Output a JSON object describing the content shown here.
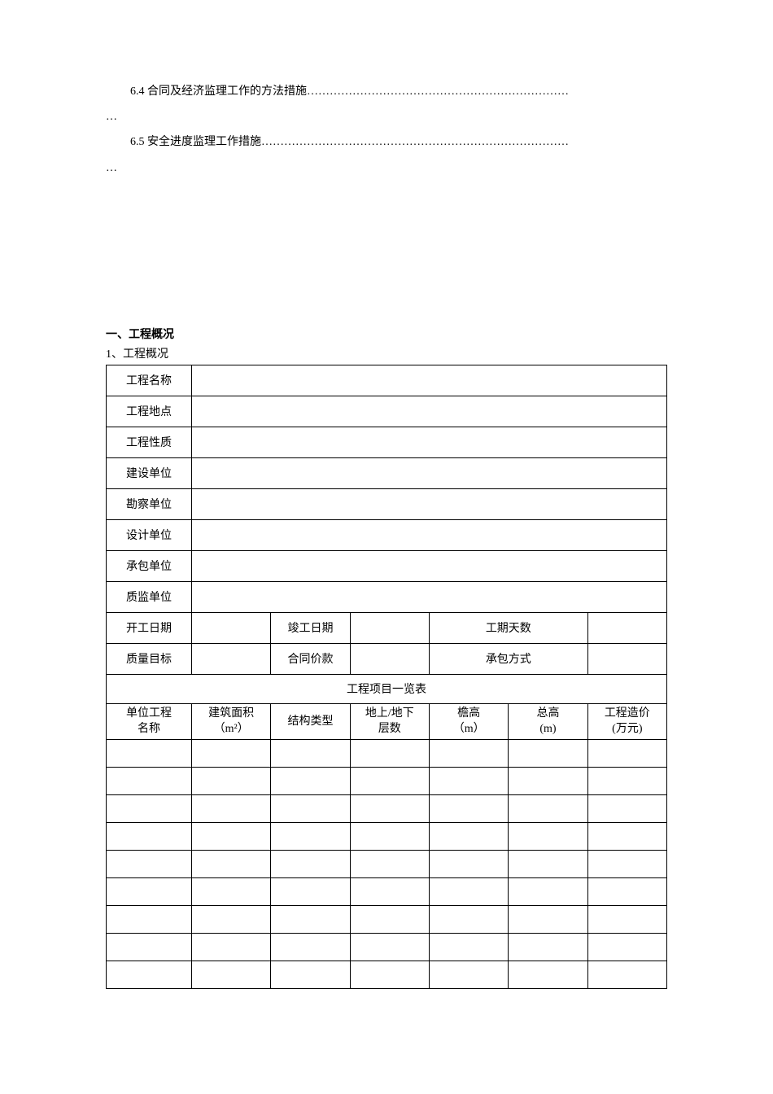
{
  "toc": {
    "item_6_4": "6.4 合同及经济监理工作的方法措施……………………………………………………………",
    "item_6_5": "6.5 安全进度监理工作措施………………………………………………………………………"
  },
  "section1": {
    "heading": "一、工程概况",
    "subheading": "1、工程概况"
  },
  "table1": {
    "labels": {
      "project_name": "工程名称",
      "project_location": "工程地点",
      "project_nature": "工程性质",
      "construction_unit": "建设单位",
      "survey_unit": "勘察单位",
      "design_unit": "设计单位",
      "contractor_unit": "承包单位",
      "quality_unit": "质监单位",
      "start_date": "开工日期",
      "completion_date": "竣工日期",
      "duration_days": "工期天数",
      "quality_target": "质量目标",
      "contract_price": "合同价款",
      "contract_method": "承包方式"
    },
    "project_list_title": "工程项目一览表",
    "columns": {
      "unit_project_name": "单位工程\n名称",
      "building_area": "建筑面积\n（m²）",
      "structure_type": "结构类型",
      "floors": "地上/地下\n层数",
      "eave_height": "檐高\n（m）",
      "total_height": "总高\n(m)",
      "project_cost": "工程造价\n(万元)"
    }
  }
}
